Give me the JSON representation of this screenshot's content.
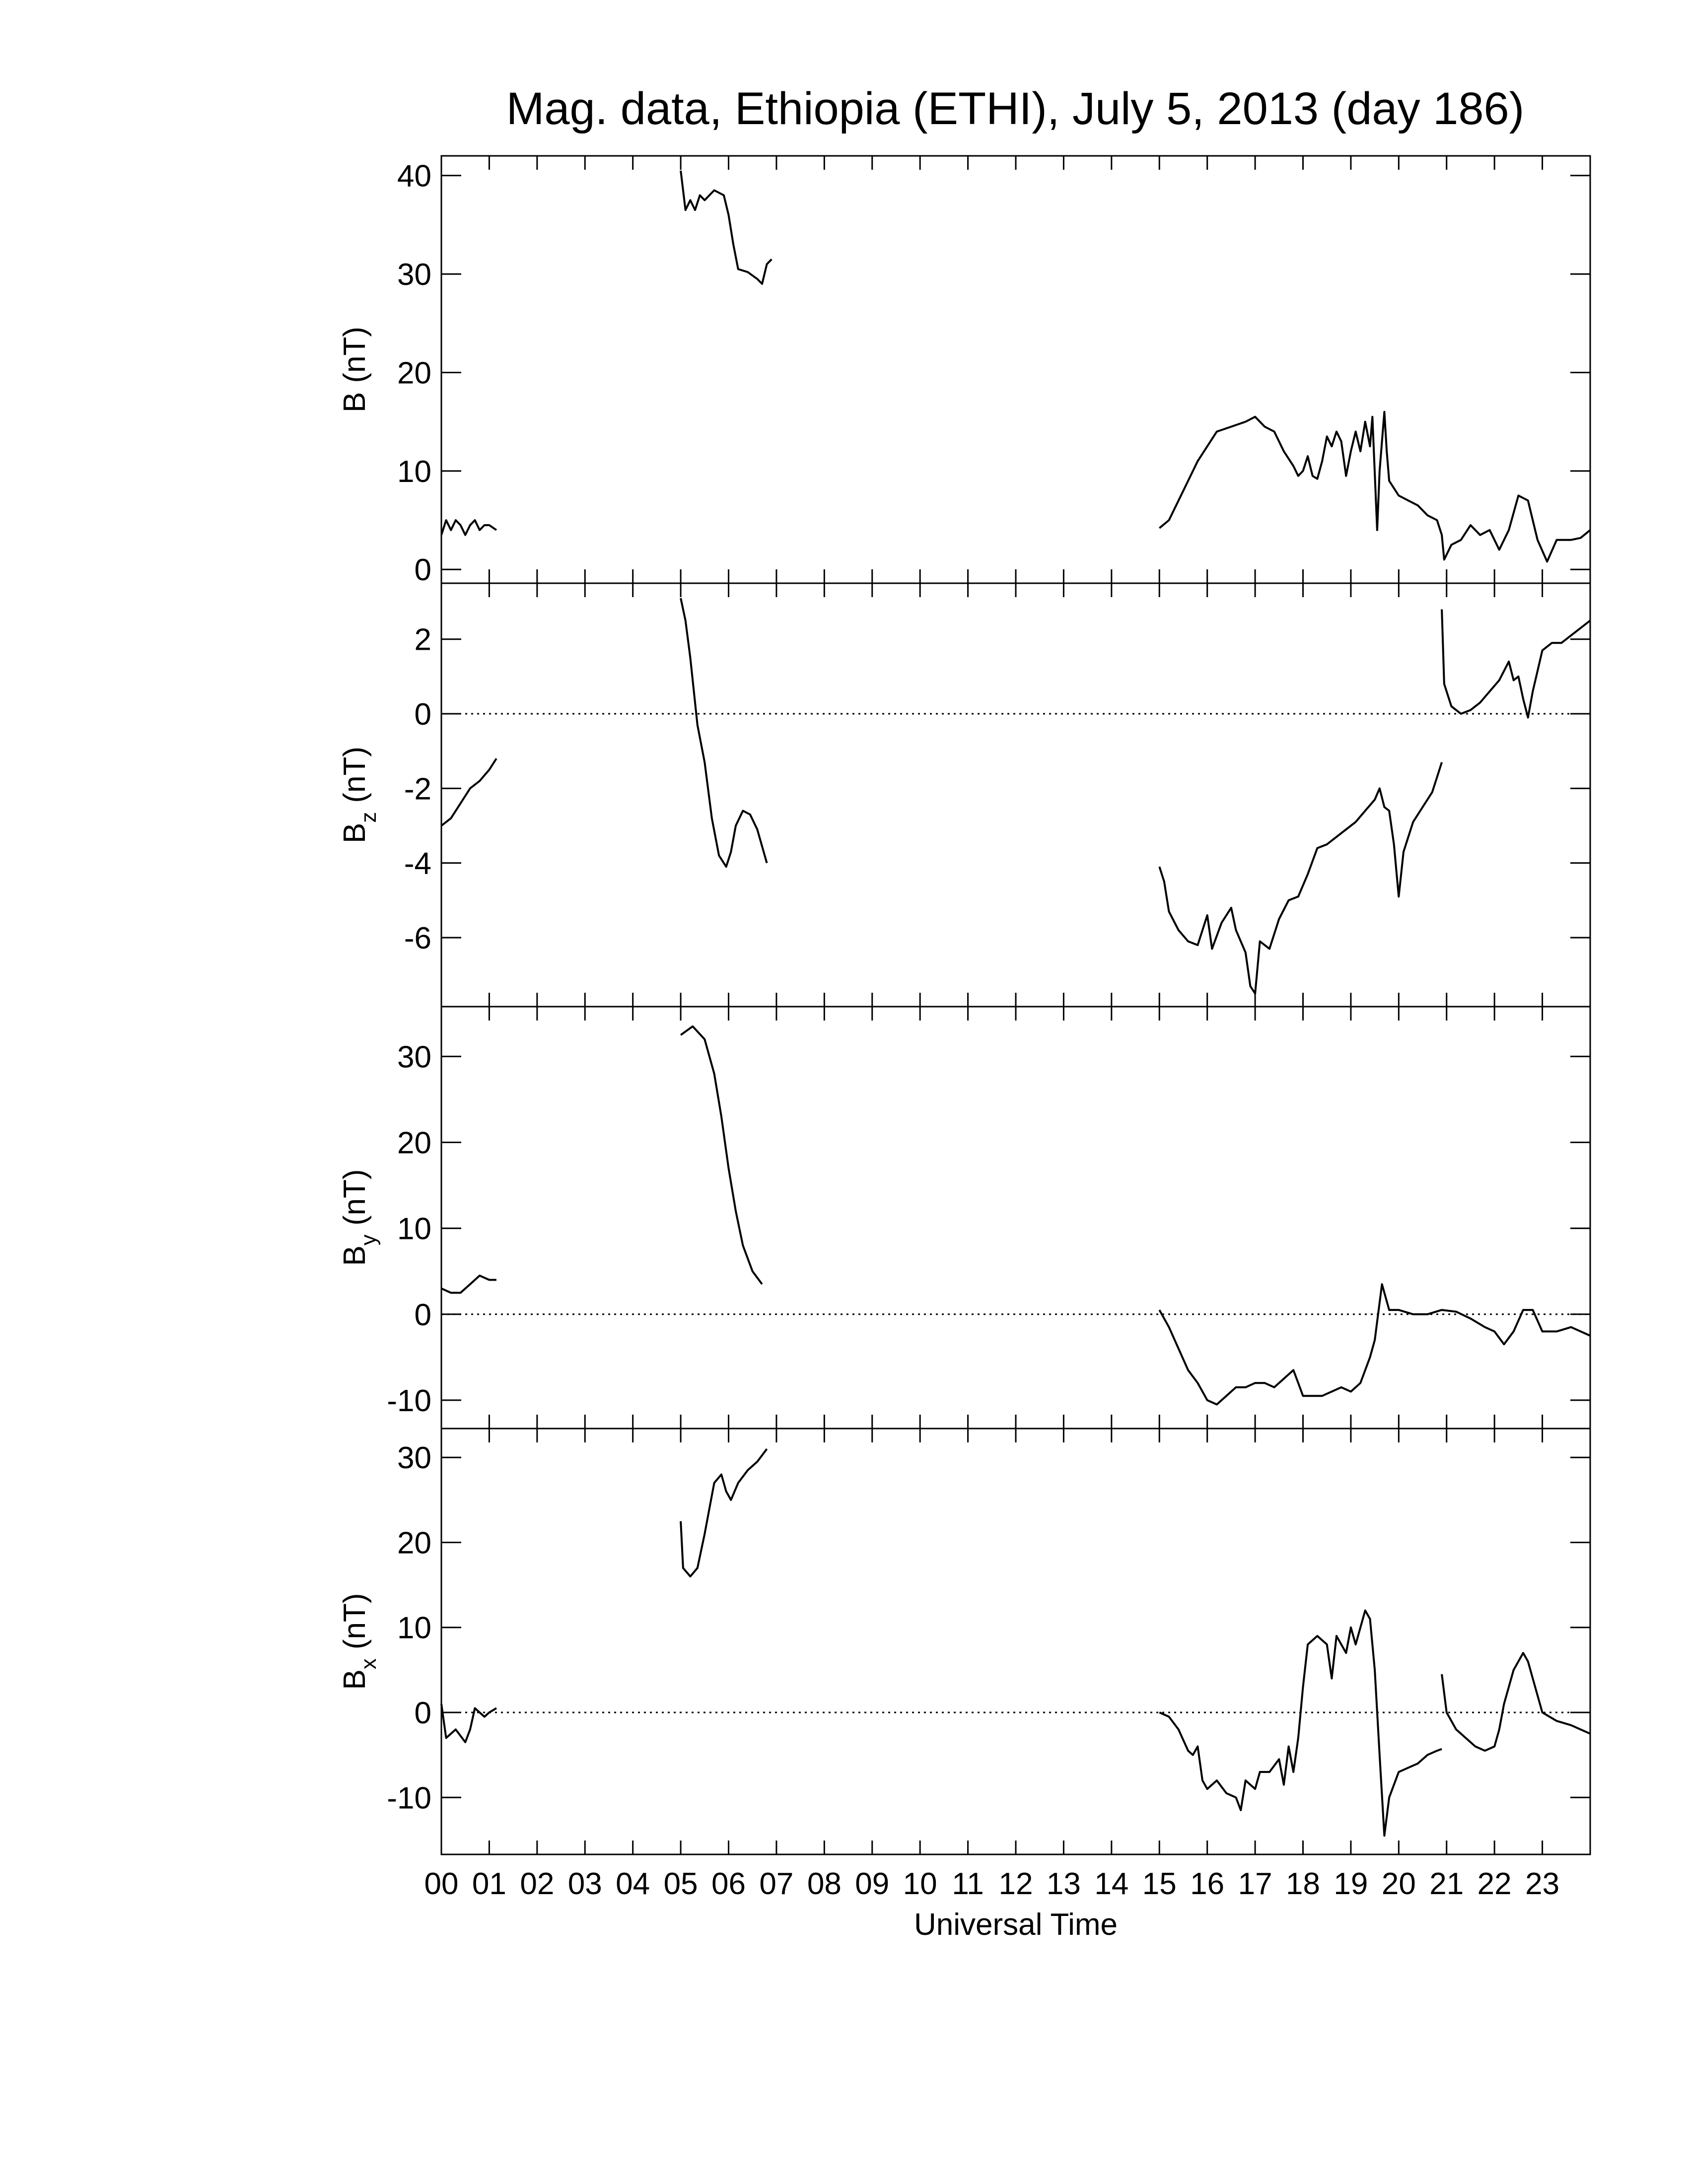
{
  "chart_data": [
    {
      "type": "line",
      "title": "Mag. data, Ethiopia (ETHI), July 5, 2013 (day 186)",
      "ylabel": "B",
      "ylabel_unit": "(nT)",
      "color": "#000000",
      "zero_line": false,
      "xlim": [
        0,
        24
      ],
      "ylim": [
        -1.4,
        42
      ],
      "yticks": [
        0,
        10,
        20,
        30,
        40
      ],
      "x": [
        0,
        0.1,
        0.2,
        0.3,
        0.4,
        0.5,
        0.6,
        0.7,
        0.8,
        0.9,
        1.0,
        1.15,
        null,
        5.0,
        5.1,
        5.2,
        5.3,
        5.4,
        5.5,
        5.7,
        5.9,
        6.0,
        6.1,
        6.2,
        6.4,
        6.6,
        6.7,
        6.8,
        6.9,
        null,
        15.0,
        15.2,
        15.5,
        15.8,
        16.0,
        16.2,
        16.5,
        16.8,
        17.0,
        17.2,
        17.4,
        17.6,
        17.8,
        17.9,
        18.0,
        18.1,
        18.2,
        18.3,
        18.4,
        18.5,
        18.6,
        18.7,
        18.8,
        18.9,
        19.0,
        19.1,
        19.2,
        19.3,
        19.4,
        19.45,
        19.55,
        19.6,
        19.7,
        19.75,
        19.8,
        20.0,
        20.2,
        20.4,
        20.6,
        20.8,
        20.9,
        20.95,
        21.1,
        21.3,
        21.5,
        21.7,
        21.9,
        22.1,
        22.3,
        22.5,
        22.7,
        22.8,
        22.9,
        23.1,
        23.3,
        23.6,
        23.8,
        24
      ],
      "values": [
        3.5,
        5,
        4,
        5,
        4.5,
        3.5,
        4.5,
        5,
        4,
        4.5,
        4.5,
        4,
        null,
        40.5,
        36.5,
        37.5,
        36.5,
        38,
        37.5,
        38.5,
        38,
        36,
        33,
        30.5,
        30.2,
        29.5,
        29,
        31,
        31.5,
        null,
        4.2,
        5,
        8,
        11,
        12.5,
        14,
        14.5,
        15,
        15.5,
        14.5,
        14,
        12,
        10.5,
        9.5,
        10,
        11.5,
        9.5,
        9.2,
        11,
        13.5,
        12.5,
        14,
        13,
        9.5,
        12,
        14,
        12,
        15,
        12.5,
        15.5,
        4,
        10,
        16,
        12,
        9,
        7.5,
        7,
        6.5,
        5.5,
        5,
        3.5,
        1,
        2.5,
        3,
        4.5,
        3.5,
        4,
        2,
        4,
        7.5,
        7,
        5,
        3,
        0.8,
        3,
        3,
        3.2,
        4
      ]
    },
    {
      "type": "line",
      "ylabel": "B",
      "ylabel_sub": "z",
      "ylabel_unit": "(nT)",
      "color": "#000000",
      "zero_line": true,
      "xlim": [
        0,
        24
      ],
      "ylim": [
        -7.85,
        3.5
      ],
      "yticks": [
        -6,
        -4,
        -2,
        0,
        2
      ],
      "x": [
        0,
        0.2,
        0.4,
        0.6,
        0.8,
        1.0,
        1.15,
        null,
        5.0,
        5.1,
        5.2,
        5.35,
        5.5,
        5.65,
        5.8,
        5.95,
        6.05,
        6.15,
        6.3,
        6.45,
        6.6,
        6.8,
        null,
        15.0,
        15.1,
        15.2,
        15.4,
        15.6,
        15.8,
        16.0,
        16.1,
        16.3,
        16.5,
        16.6,
        16.8,
        16.9,
        17.0,
        17.1,
        17.3,
        17.5,
        17.7,
        17.9,
        18.1,
        18.3,
        18.5,
        18.7,
        18.9,
        19.1,
        19.3,
        19.5,
        19.6,
        19.7,
        19.8,
        19.9,
        20.0,
        20.1,
        20.3,
        20.5,
        20.7,
        20.8,
        20.9,
        null,
        20.9,
        20.95,
        21.1,
        21.3,
        21.5,
        21.7,
        21.9,
        22.1,
        22.3,
        22.4,
        22.5,
        22.6,
        22.7,
        22.8,
        23.0,
        23.2,
        23.4,
        23.6,
        23.8,
        24.0
      ],
      "values": [
        -3,
        -2.8,
        -2.4,
        -2,
        -1.8,
        -1.5,
        -1.2,
        null,
        3.1,
        2.5,
        1.5,
        -0.3,
        -1.3,
        -2.8,
        -3.8,
        -4.1,
        -3.7,
        -3.0,
        -2.6,
        -2.7,
        -3.1,
        -4.0,
        null,
        -4.1,
        -4.5,
        -5.3,
        -5.8,
        -6.1,
        -6.2,
        -5.4,
        -6.3,
        -5.6,
        -5.2,
        -5.8,
        -6.4,
        -7.3,
        -7.5,
        -6.1,
        -6.3,
        -5.5,
        -5.0,
        -4.9,
        -4.3,
        -3.6,
        -3.5,
        -3.3,
        -3.1,
        -2.9,
        -2.6,
        -2.3,
        -2.0,
        -2.5,
        -2.6,
        -3.5,
        -4.9,
        -3.7,
        -2.9,
        -2.5,
        -2.1,
        -1.7,
        -1.3,
        null,
        2.8,
        0.8,
        0.2,
        0.0,
        0.1,
        0.3,
        0.6,
        0.9,
        1.4,
        0.9,
        1.0,
        0.4,
        -0.1,
        0.6,
        1.7,
        1.9,
        1.9,
        2.1,
        2.3,
        2.5
      ]
    },
    {
      "type": "line",
      "ylabel": "B",
      "ylabel_sub": "y",
      "ylabel_unit": "(nT)",
      "color": "#000000",
      "zero_line": true,
      "xlim": [
        0,
        24
      ],
      "ylim": [
        -13.3,
        35.8
      ],
      "yticks": [
        -10,
        0,
        10,
        20,
        30
      ],
      "x": [
        0,
        0.2,
        0.4,
        0.6,
        0.8,
        1.0,
        1.15,
        null,
        5.0,
        5.25,
        5.5,
        5.7,
        5.85,
        6.0,
        6.15,
        6.3,
        6.5,
        6.7,
        null,
        15.0,
        15.2,
        15.4,
        15.6,
        15.8,
        16.0,
        16.2,
        16.4,
        16.6,
        16.8,
        17.0,
        17.2,
        17.4,
        17.6,
        17.8,
        17.9,
        18.0,
        18.2,
        18.4,
        18.6,
        18.8,
        19.0,
        19.2,
        19.4,
        19.5,
        19.65,
        19.8,
        20.0,
        20.3,
        20.6,
        20.9,
        21.2,
        21.5,
        21.8,
        22.0,
        22.2,
        22.4,
        22.6,
        22.8,
        23.0,
        23.3,
        23.6,
        24.0
      ],
      "values": [
        3,
        2.5,
        2.5,
        3.5,
        4.5,
        4,
        4,
        null,
        32.5,
        33.5,
        32,
        28,
        23,
        17,
        12,
        8,
        5,
        3.5,
        null,
        0.5,
        -1.5,
        -4,
        -6.5,
        -8,
        -10,
        -10.5,
        -9.5,
        -8.5,
        -8.5,
        -8,
        -8,
        -8.5,
        -7.5,
        -6.5,
        -8,
        -9.5,
        -9.5,
        -9.5,
        -9,
        -8.5,
        -9,
        -8,
        -5,
        -3,
        3.5,
        0.5,
        0.5,
        0,
        0,
        0.5,
        0.3,
        -0.5,
        -1.5,
        -2,
        -3.5,
        -2,
        0.5,
        0.5,
        -2,
        -2,
        -1.5,
        -2.5
      ]
    },
    {
      "type": "line",
      "ylabel": "B",
      "ylabel_sub": "x",
      "ylabel_unit": "(nT)",
      "color": "#000000",
      "zero_line": true,
      "xlabel": "Universal Time",
      "xlim": [
        0,
        24
      ],
      "ylim": [
        -16.7,
        33.4
      ],
      "yticks": [
        -10,
        0,
        10,
        20,
        30
      ],
      "xticks": [
        {
          "value": 0,
          "label": "00"
        },
        {
          "value": 1,
          "label": "01"
        },
        {
          "value": 2,
          "label": "02"
        },
        {
          "value": 3,
          "label": "03"
        },
        {
          "value": 4,
          "label": "04"
        },
        {
          "value": 5,
          "label": "05"
        },
        {
          "value": 6,
          "label": "06"
        },
        {
          "value": 7,
          "label": "07"
        },
        {
          "value": 8,
          "label": "08"
        },
        {
          "value": 9,
          "label": "09"
        },
        10,
        11,
        12,
        13,
        14,
        15,
        16,
        17,
        18,
        19,
        20,
        21,
        22,
        23
      ],
      "x": [
        0,
        0.1,
        0.3,
        0.5,
        0.6,
        0.7,
        0.8,
        0.9,
        1.0,
        1.15,
        null,
        5.0,
        5.05,
        5.2,
        5.35,
        5.5,
        5.6,
        5.7,
        5.85,
        5.95,
        6.05,
        6.2,
        6.4,
        6.6,
        6.8,
        null,
        15.0,
        15.2,
        15.4,
        15.6,
        15.7,
        15.8,
        15.9,
        16.0,
        16.2,
        16.4,
        16.6,
        16.7,
        16.8,
        17.0,
        17.1,
        17.3,
        17.5,
        17.6,
        17.7,
        17.8,
        17.9,
        18.0,
        18.1,
        18.3,
        18.5,
        18.6,
        18.7,
        18.9,
        19.0,
        19.1,
        19.3,
        19.4,
        19.5,
        19.6,
        19.7,
        19.8,
        20.0,
        20.2,
        20.4,
        20.6,
        20.8,
        20.9,
        null,
        20.9,
        21.0,
        21.2,
        21.4,
        21.6,
        21.8,
        22.0,
        22.1,
        22.2,
        22.4,
        22.6,
        22.7,
        22.8,
        23.0,
        23.3,
        23.6,
        24.0
      ],
      "values": [
        1,
        -3,
        -2,
        -3.5,
        -2,
        0.5,
        0,
        -0.5,
        0,
        0.5,
        null,
        22.5,
        17,
        16,
        17,
        21,
        24,
        27,
        28,
        26,
        25,
        27,
        28.5,
        29.5,
        31,
        null,
        0,
        -0.5,
        -2,
        -4.5,
        -5,
        -4,
        -8,
        -9,
        -8,
        -9.5,
        -10,
        -11.5,
        -8,
        -9,
        -7,
        -7,
        -5.5,
        -8.5,
        -4,
        -7,
        -3,
        3,
        8,
        9,
        8,
        4,
        9,
        7,
        10,
        8,
        12,
        11,
        5,
        -5,
        -14.5,
        -10,
        -7,
        -6.5,
        -6,
        -5,
        -4.5,
        -4.3,
        null,
        4.5,
        0,
        -2,
        -3,
        -4,
        -4.5,
        -4,
        -2,
        1,
        5,
        7,
        6,
        4,
        0,
        -1,
        -1.5,
        -2.5
      ]
    }
  ]
}
